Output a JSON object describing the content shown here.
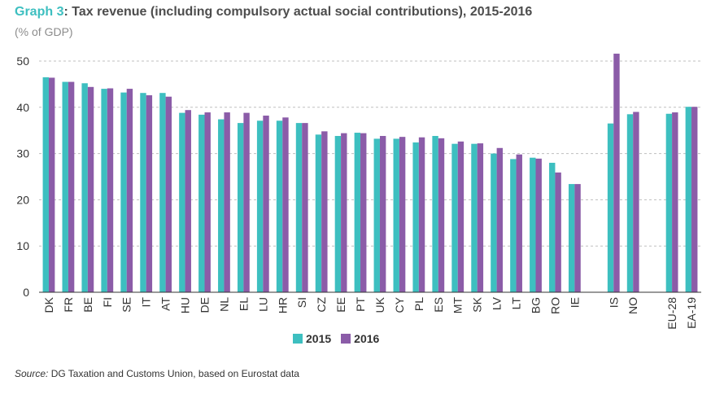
{
  "header": {
    "title_lead": "Graph 3",
    "title_rest": ": Tax revenue (including compulsory actual social contributions), 2015-2016",
    "subtitle": "(% of GDP)"
  },
  "footer": {
    "source_label": "Source:",
    "source_text": " DG Taxation and Customs Union, based on Eurostat data"
  },
  "colors": {
    "series_2015": "#3dbfc0",
    "series_2016": "#8b5ca8",
    "grid": "#bfbfbf",
    "axis": "#333333"
  },
  "chart_data": {
    "type": "bar",
    "categories": [
      "DK",
      "FR",
      "BE",
      "FI",
      "SE",
      "IT",
      "AT",
      "HU",
      "DE",
      "NL",
      "EL",
      "LU",
      "HR",
      "SI",
      "CZ",
      "EE",
      "PT",
      "UK",
      "CY",
      "PL",
      "ES",
      "MT",
      "SK",
      "LV",
      "LT",
      "BG",
      "RO",
      "IE",
      "",
      "IS",
      "NO",
      "",
      "EU-28",
      "EA-19"
    ],
    "series": [
      {
        "name": "2015",
        "values": [
          46.5,
          45.5,
          45.2,
          44.0,
          43.2,
          43.1,
          43.1,
          38.8,
          38.4,
          37.4,
          36.6,
          37.1,
          37.1,
          36.6,
          34.1,
          33.8,
          34.5,
          33.2,
          33.2,
          32.4,
          33.8,
          32.1,
          32.1,
          30.0,
          28.8,
          29.1,
          28.0,
          23.4,
          null,
          36.5,
          38.5,
          null,
          38.6,
          40.1
        ]
      },
      {
        "name": "2016",
        "values": [
          46.4,
          45.5,
          44.4,
          44.1,
          44.0,
          42.6,
          42.3,
          39.4,
          38.9,
          38.9,
          38.8,
          38.2,
          37.8,
          36.6,
          34.8,
          34.4,
          34.4,
          33.8,
          33.6,
          33.5,
          33.3,
          32.6,
          32.2,
          31.2,
          29.8,
          28.9,
          25.9,
          23.4,
          null,
          51.6,
          39.0,
          null,
          38.9,
          40.1
        ]
      }
    ],
    "ylim": [
      0,
      50
    ],
    "yticks": [
      0,
      10,
      20,
      30,
      40,
      50
    ],
    "grid": true,
    "legend": "bottom-center"
  }
}
